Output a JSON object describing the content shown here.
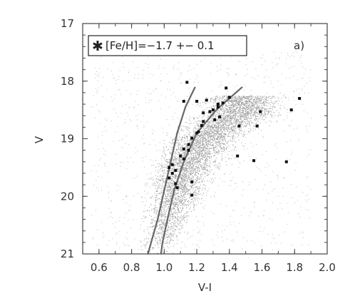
{
  "chart_data": {
    "type": "scatter",
    "panel_label": "a)",
    "xlabel": "V-I",
    "ylabel": "V",
    "xlim": [
      0.5,
      2.0
    ],
    "ylim": [
      21.0,
      17.0
    ],
    "y_inverted": true,
    "xticks": [
      "0.6",
      "0.8",
      "1.0",
      "1.2",
      "1.4",
      "1.6",
      "1.8",
      "2.0"
    ],
    "yticks": [
      "17",
      "18",
      "19",
      "20",
      "21"
    ],
    "legend": {
      "marker_glyph": "✱",
      "text": "[Fe/H]=−1.7 +− 0.1",
      "placement": "top-left"
    },
    "colors": {
      "background_stars": "#9a9a9a",
      "highlighted_stars": "#111111",
      "isochrones": "#666666",
      "axes": "#444444"
    },
    "field_stars": {
      "description_of_distribution": "dense grey cloud of field stars forming a red giant branch and main-sequence turnoff",
      "ridge": [
        [
          0.96,
          21.0
        ],
        [
          1.0,
          20.6
        ],
        [
          1.04,
          20.2
        ],
        [
          1.09,
          19.8
        ],
        [
          1.16,
          19.4
        ],
        [
          1.25,
          19.0
        ],
        [
          1.36,
          18.75
        ],
        [
          1.48,
          18.55
        ]
      ]
    },
    "series": [
      {
        "name": "",
        "marker": "x",
        "points": [
          [
            1.14,
            18.02
          ],
          [
            1.12,
            18.35
          ],
          [
            1.2,
            18.35
          ],
          [
            1.26,
            18.33
          ],
          [
            1.33,
            18.4
          ],
          [
            1.33,
            18.45
          ],
          [
            1.38,
            18.12
          ],
          [
            1.4,
            18.28
          ],
          [
            1.3,
            18.5
          ],
          [
            1.28,
            18.53
          ],
          [
            1.24,
            18.55
          ],
          [
            1.36,
            18.38
          ],
          [
            1.34,
            18.62
          ],
          [
            1.31,
            18.67
          ],
          [
            1.24,
            18.7
          ],
          [
            1.23,
            18.77
          ],
          [
            1.21,
            18.88
          ],
          [
            1.2,
            18.9
          ],
          [
            1.17,
            18.99
          ],
          [
            1.15,
            19.1
          ],
          [
            1.12,
            19.18
          ],
          [
            1.15,
            19.2
          ],
          [
            1.1,
            19.3
          ],
          [
            1.12,
            19.35
          ],
          [
            1.05,
            19.45
          ],
          [
            1.03,
            19.5
          ],
          [
            1.07,
            19.55
          ],
          [
            1.05,
            19.6
          ],
          [
            1.03,
            19.68
          ],
          [
            1.07,
            19.78
          ],
          [
            1.17,
            19.75
          ],
          [
            1.08,
            19.85
          ],
          [
            1.17,
            19.98
          ],
          [
            1.45,
            19.3
          ],
          [
            1.55,
            19.38
          ],
          [
            1.75,
            19.4
          ],
          [
            1.57,
            18.78
          ],
          [
            1.59,
            18.53
          ],
          [
            1.78,
            18.5
          ],
          [
            1.83,
            18.3
          ],
          [
            1.46,
            18.78
          ]
        ]
      }
    ],
    "isochrones": [
      {
        "points": [
          [
            1.19,
            18.1
          ],
          [
            1.13,
            18.45
          ],
          [
            1.08,
            18.9
          ],
          [
            1.04,
            19.4
          ],
          [
            1.0,
            19.9
          ],
          [
            0.96,
            20.4
          ],
          [
            0.92,
            20.8
          ],
          [
            0.9,
            21.0
          ]
        ]
      },
      {
        "points": [
          [
            1.48,
            18.1
          ],
          [
            1.32,
            18.5
          ],
          [
            1.2,
            18.9
          ],
          [
            1.12,
            19.4
          ],
          [
            1.06,
            19.9
          ],
          [
            1.02,
            20.4
          ],
          [
            0.99,
            20.8
          ],
          [
            0.98,
            21.0
          ]
        ]
      }
    ]
  }
}
